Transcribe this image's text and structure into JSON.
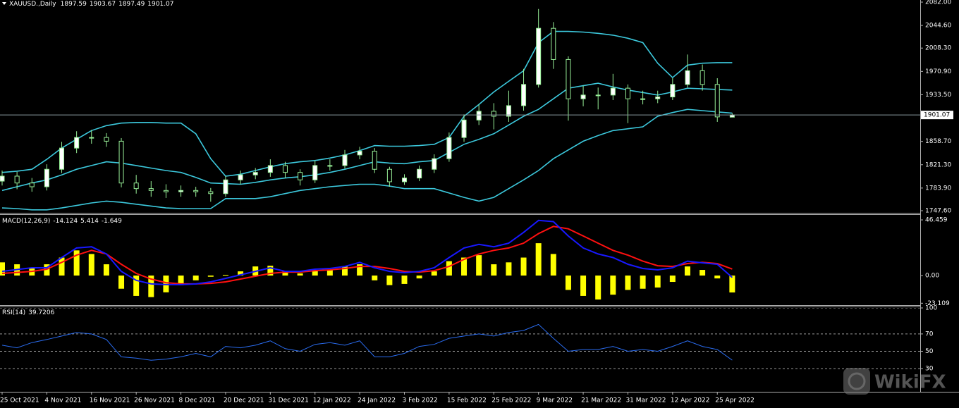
{
  "chart_data": [
    {
      "type": "candlestick",
      "title": "XAUUSD.,Daily",
      "categories": [
        "25 Oct 2021",
        null,
        null,
        "4 Nov 2021",
        null,
        null,
        "16 Nov 2021",
        null,
        null,
        "26 Nov 2021",
        null,
        null,
        "8 Dec 2021",
        null,
        null,
        "20 Dec 2021",
        null,
        null,
        "31 Dec 2021",
        null,
        null,
        "12 Jan 2022",
        null,
        null,
        "24 Jan 2022",
        null,
        null,
        "3 Feb 2022",
        null,
        null,
        "15 Feb 2022",
        null,
        null,
        "25 Feb 2022",
        null,
        null,
        "9 Mar 2022",
        null,
        null,
        "21 Mar 2022",
        null,
        null,
        "31 Mar 2022",
        null,
        null,
        "12 Apr 2022",
        null,
        null,
        "25 Apr 2022",
        null
      ],
      "open": [
        1795,
        1803,
        1792,
        1786,
        1814,
        1848,
        1865,
        1865,
        1859,
        1792,
        1783,
        1780,
        1778,
        1780,
        1778,
        1775,
        1797,
        1805,
        1809,
        1820,
        1809,
        1797,
        1820,
        1820,
        1837,
        1843,
        1814,
        1794,
        1800,
        1814,
        1831,
        1865,
        1893,
        1907,
        1899,
        1916,
        1950,
        2040,
        1990,
        1927,
        1933,
        1933,
        1944,
        1927,
        1927,
        1930,
        1950,
        1972,
        1950,
        1897.59
      ],
      "high": [
        1812,
        1810,
        1800,
        1822,
        1858,
        1875,
        1877,
        1872,
        1864,
        1805,
        1795,
        1790,
        1788,
        1786,
        1784,
        1803,
        1812,
        1816,
        1830,
        1826,
        1814,
        1828,
        1830,
        1845,
        1850,
        1848,
        1818,
        1806,
        1820,
        1838,
        1873,
        1902,
        1918,
        1920,
        1940,
        1975,
        2071,
        2050,
        1995,
        1948,
        1945,
        1967,
        1950,
        1940,
        1940,
        1960,
        1998,
        1982,
        1960,
        1903.67
      ],
      "low": [
        1788,
        1782,
        1778,
        1780,
        1808,
        1840,
        1855,
        1850,
        1785,
        1775,
        1770,
        1768,
        1770,
        1770,
        1762,
        1770,
        1790,
        1798,
        1802,
        1800,
        1788,
        1792,
        1812,
        1815,
        1830,
        1808,
        1786,
        1789,
        1795,
        1808,
        1826,
        1858,
        1885,
        1878,
        1890,
        1908,
        1945,
        1975,
        1892,
        1915,
        1910,
        1925,
        1888,
        1918,
        1920,
        1925,
        1945,
        1940,
        1890,
        1897.49
      ],
      "close": [
        1803,
        1792,
        1786,
        1814,
        1848,
        1865,
        1865,
        1859,
        1792,
        1783,
        1780,
        1778,
        1780,
        1778,
        1775,
        1797,
        1805,
        1809,
        1820,
        1809,
        1797,
        1820,
        1820,
        1837,
        1843,
        1814,
        1794,
        1800,
        1814,
        1831,
        1865,
        1893,
        1907,
        1899,
        1916,
        1950,
        2040,
        1990,
        1927,
        1933,
        1933,
        1944,
        1927,
        1927,
        1930,
        1950,
        1972,
        1950,
        1898,
        1901.07
      ],
      "up_color": "#ffffff",
      "down_color": "#000000",
      "candle_line_color": "#98f098",
      "price_line_color": "#8a9aa0",
      "series": [
        {
          "color": "#3cc8dc",
          "values": [
            1809,
            1811,
            1814,
            1830,
            1848,
            1862,
            1876,
            1884,
            1888,
            1889,
            1889,
            1888,
            1888,
            1871,
            1831,
            1803,
            1806,
            1812,
            1818,
            1823,
            1826,
            1828,
            1832,
            1837,
            1844,
            1852,
            1851,
            1851,
            1852,
            1854,
            1865,
            1899,
            1918,
            1938,
            1955,
            1972,
            2017,
            2035,
            2035,
            2034,
            2032,
            2029,
            2024,
            2017,
            1984,
            1961,
            1981,
            1984,
            1985,
            1985
          ]
        },
        {
          "color": "#3cc8dc",
          "values": [
            1780,
            1786,
            1792,
            1797,
            1805,
            1814,
            1820,
            1826,
            1824,
            1820,
            1816,
            1812,
            1809,
            1801,
            1792,
            1791,
            1790,
            1793,
            1797,
            1800,
            1802,
            1805,
            1809,
            1814,
            1820,
            1826,
            1824,
            1823,
            1826,
            1828,
            1841,
            1854,
            1862,
            1871,
            1885,
            1899,
            1910,
            1927,
            1944,
            1948,
            1952,
            1946,
            1941,
            1937,
            1933,
            1938,
            1944,
            1943,
            1942,
            1941
          ]
        },
        {
          "color": "#3cc8dc",
          "values": [
            1752,
            1751,
            1749,
            1749,
            1752,
            1756,
            1760,
            1763,
            1761,
            1758,
            1755,
            1752,
            1751,
            1751,
            1751,
            1767,
            1767,
            1767,
            1770,
            1775,
            1780,
            1783,
            1786,
            1788,
            1790,
            1790,
            1787,
            1783,
            1783,
            1783,
            1776,
            1769,
            1763,
            1769,
            1783,
            1797,
            1812,
            1831,
            1845,
            1859,
            1868,
            1876,
            1879,
            1882,
            1899,
            1905,
            1910,
            1908,
            1906,
            1904
          ]
        }
      ],
      "ylim": [
        1747.6,
        2082.0
      ],
      "yticks": [
        {
          "value": 2082.0,
          "label": "2082.00"
        },
        {
          "value": 2044.6,
          "label": "2044.60"
        },
        {
          "value": 2008.3,
          "label": "2008.30"
        },
        {
          "value": 1970.9,
          "label": "1970.90"
        },
        {
          "value": 1933.5,
          "label": "1933.50"
        },
        {
          "value": 1858.7,
          "label": "1858.70"
        },
        {
          "value": 1821.3,
          "label": "1821.30"
        },
        {
          "value": 1783.9,
          "label": "1783.90"
        },
        {
          "value": 1747.6,
          "label": "1747.60"
        }
      ]
    },
    {
      "type": "combo",
      "title": "MACD(12,26,9)",
      "series": [
        {
          "type": "bar",
          "color": "#ffff00",
          "values": [
            11,
            9.4,
            6.5,
            9.4,
            15,
            21,
            18,
            9.4,
            -11,
            -17,
            -18,
            -14,
            -8,
            -4,
            -1,
            0.6,
            3.5,
            7.6,
            8.2,
            3.5,
            1.8,
            4.7,
            4.7,
            7.6,
            9.4,
            -4,
            -8,
            -7,
            -2.4,
            3.5,
            12,
            15,
            17,
            9.4,
            11,
            15,
            27,
            18,
            -12,
            -17,
            -20,
            -16,
            -12,
            -11,
            -10,
            -5.3,
            7.6,
            4.7,
            -2.4,
            -14.124
          ]
        },
        {
          "type": "line",
          "color": "#ff1010",
          "values": [
            1.8,
            2.6,
            3.5,
            5.3,
            11,
            17,
            21,
            18,
            9.4,
            1.8,
            -2.9,
            -5.9,
            -7,
            -7,
            -6.5,
            -5.3,
            -2.9,
            -0.6,
            1.8,
            2.9,
            2.9,
            4.1,
            4.7,
            5.9,
            7.6,
            7.6,
            5.9,
            3.5,
            2.9,
            4.1,
            7.6,
            13.5,
            18,
            21,
            23,
            27,
            35,
            41,
            39,
            33,
            27,
            21,
            17,
            12,
            8.2,
            7.6,
            10,
            11,
            10,
            5.414
          ]
        },
        {
          "type": "line",
          "color": "#1818ff",
          "values": [
            3.5,
            5,
            6.5,
            6.5,
            15,
            23,
            24,
            18,
            3.5,
            -4,
            -7,
            -7.6,
            -7.6,
            -7,
            -5.3,
            -2.4,
            0.6,
            3.5,
            6.5,
            3.5,
            3.5,
            5.3,
            5.9,
            7.6,
            11,
            6.5,
            3.5,
            2.4,
            3.5,
            6.5,
            15,
            23,
            26,
            24,
            27,
            36,
            46,
            45,
            33,
            23,
            18,
            15,
            9.4,
            5.9,
            4.7,
            6.5,
            12,
            10.6,
            9.4,
            -1.649
          ]
        }
      ],
      "ylim": [
        -24.1,
        50.6
      ],
      "yticks": [
        46.459,
        {
          "value": 0,
          "label": "0.00"
        },
        -23.109
      ]
    },
    {
      "type": "line",
      "title": "RSI(14)",
      "series": [
        {
          "color": "#2a6cf0",
          "values": [
            57,
            54,
            60,
            63.6,
            67.6,
            71.6,
            70,
            63.6,
            43.6,
            42,
            39.6,
            41,
            43.6,
            47.6,
            43.6,
            55.6,
            54,
            57,
            62,
            53,
            50,
            58,
            60,
            57,
            62,
            43.6,
            43.6,
            47.6,
            55.6,
            58,
            65,
            67.6,
            70,
            67.6,
            71.6,
            74,
            81,
            65,
            50,
            52,
            52,
            55.6,
            50,
            52,
            50,
            55.6,
            62,
            55.6,
            52,
            39.7206
          ]
        }
      ],
      "ylim": [
        0,
        100
      ],
      "yticks": [
        100,
        70,
        50,
        30
      ],
      "grid": true
    }
  ],
  "watermark": "WikiFX"
}
